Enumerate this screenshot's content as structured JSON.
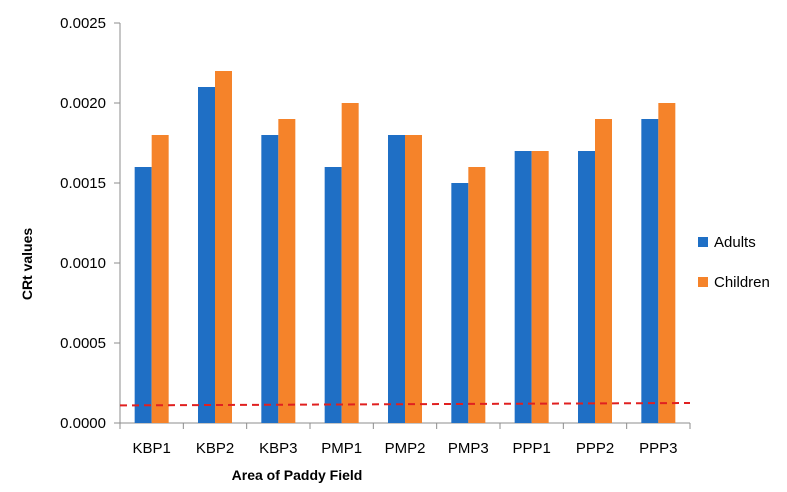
{
  "chart_data": {
    "type": "bar",
    "categories": [
      "KBP1",
      "KBP2",
      "KBP3",
      "PMP1",
      "PMP2",
      "PMP3",
      "PPP1",
      "PPP2",
      "PPP3"
    ],
    "series": [
      {
        "name": "Adults",
        "color": "#1f6fc5",
        "values": [
          0.0016,
          0.0021,
          0.0018,
          0.0016,
          0.0018,
          0.0015,
          0.0017,
          0.0017,
          0.0019
        ]
      },
      {
        "name": "Children",
        "color": "#f5832a",
        "values": [
          0.0018,
          0.0022,
          0.0019,
          0.002,
          0.0018,
          0.0016,
          0.0017,
          0.0019,
          0.002
        ]
      }
    ],
    "xlabel": "Area of Paddy Field",
    "ylabel": "CRt values",
    "ylim": [
      0,
      0.0025
    ],
    "yticks": [
      "0.0000",
      "0.0005",
      "0.0010",
      "0.0015",
      "0.0020",
      "0.0025"
    ],
    "ytick_values": [
      0,
      0.0005,
      0.001,
      0.0015,
      0.002,
      0.0025
    ],
    "reference_line": {
      "start": 0.00011,
      "end": 0.000125,
      "color": "#e02020",
      "style": "dashed"
    },
    "legend_position": "right",
    "grid": false
  }
}
